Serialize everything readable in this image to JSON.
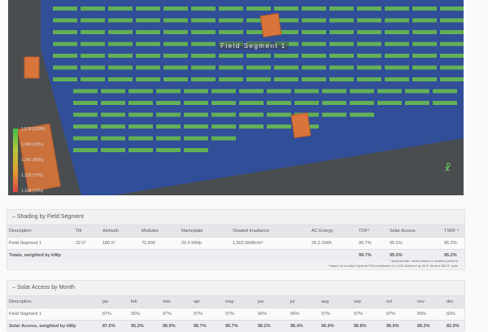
{
  "map": {
    "segment_label": "Field Segment 1",
    "legend": [
      "1,578 (100%)",
      "1,460 (93%)",
      "1,341 (85%)",
      "1,223 (77%)",
      "1,105 (70%)"
    ],
    "compass_icon": "compass-icon",
    "colors": {
      "field": "#2f4fa0",
      "module": "#6cc24a",
      "obstruction": "#d9753a"
    }
  },
  "shading": {
    "title": "Shading by Field Segment",
    "headers": [
      "Description",
      "Tilt",
      "Azimuth",
      "Modules",
      "Nameplate",
      "Shaded Irradiance",
      "AC Energy",
      "TOF²",
      "Solar Access",
      "TSRF ²"
    ],
    "row": [
      "Field Segment 1",
      "32.0°",
      "180.0°",
      "72,800",
      "20.4 MWp",
      "1,502.9kWh/m²",
      "26.2 GWh",
      "99.7%",
      "95.5%",
      "95.2%"
    ],
    "totals": {
      "label": "Totals, weighted by kWp",
      "tof": "99.7%",
      "solar_access": "95.5%",
      "tsrf": "95.2%"
    },
    "footnotes": [
      "¹ approximate, varies based on inverter perform",
      "² based on location Optimal POA Irradiance of 1,578.1kWh/m² at 36.9° tilt and 183.3° azim"
    ]
  },
  "solar_access": {
    "title": "Solar Access by Month",
    "headers": [
      "Description",
      "jan",
      "feb",
      "mar",
      "apr",
      "may",
      "jun",
      "jul",
      "aug",
      "sep",
      "oct",
      "nov",
      "dec"
    ],
    "row": [
      "Field Segment 1",
      "87%",
      "95%",
      "97%",
      "97%",
      "97%",
      "96%",
      "96%",
      "97%",
      "97%",
      "97%",
      "89%",
      "83%"
    ],
    "totals": [
      "Solar Access, weighted by kWp",
      "87.0%",
      "95.3%",
      "96.9%",
      "96.7%",
      "96.7%",
      "96.2%",
      "96.4%",
      "96.9%",
      "96.8%",
      "96.9%",
      "89.2%",
      "82.9%"
    ]
  }
}
